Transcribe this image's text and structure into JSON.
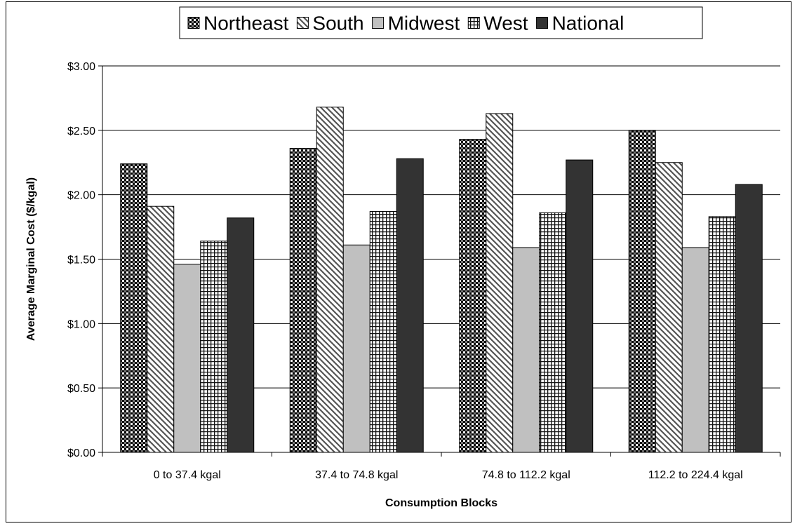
{
  "chart_data": {
    "type": "bar",
    "title": "",
    "xlabel": "Consumption Blocks",
    "ylabel": "Average Marginal Cost ($/kgal)",
    "categories": [
      "0 to 37.4 kgal",
      "37.4 to 74.8 kgal",
      "74.8 to 112.2 kgal",
      "112.2 to 224.4 kgal"
    ],
    "ylim": [
      0,
      3
    ],
    "yticks": [
      0,
      0.5,
      1,
      1.5,
      2,
      2.5,
      3
    ],
    "ytick_labels": [
      "$0.00",
      "$0.50",
      "$1.00",
      "$1.50",
      "$2.00",
      "$2.50",
      "$3.00"
    ],
    "grid": true,
    "legend_position": "top",
    "series": [
      {
        "name": "Northeast",
        "pattern": "checker",
        "values": [
          2.24,
          2.36,
          2.43,
          2.5
        ]
      },
      {
        "name": "South",
        "pattern": "diagonal",
        "values": [
          1.91,
          2.68,
          2.63,
          2.25
        ]
      },
      {
        "name": "Midwest",
        "pattern": "solid-light",
        "color": "#c0c0c0",
        "values": [
          1.46,
          1.61,
          1.59,
          1.59
        ]
      },
      {
        "name": "West",
        "pattern": "grid",
        "values": [
          1.64,
          1.87,
          1.86,
          1.83
        ]
      },
      {
        "name": "National",
        "pattern": "solid-dark",
        "color": "#333333",
        "values": [
          1.82,
          2.28,
          2.27,
          2.08
        ]
      }
    ]
  }
}
